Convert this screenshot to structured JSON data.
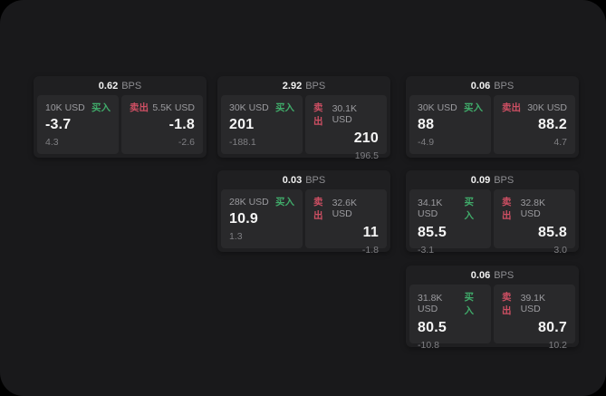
{
  "labels": {
    "bps": "BPS",
    "buy": "买入",
    "sell": "卖出"
  },
  "colors": {
    "buy_green": "#40ab6a",
    "sell_red": "#cd4f63",
    "page_bg": "#19191b",
    "card_bg": "#1f1f21",
    "tile_bg": "#29292b"
  },
  "cards": [
    {
      "bps": "0.62",
      "buy": {
        "amount": "10K USD",
        "value": "-3.7",
        "delta": "4.3"
      },
      "sell": {
        "amount": "5.5K USD",
        "value": "-1.8",
        "delta": "-2.6"
      }
    },
    {
      "bps": "2.92",
      "buy": {
        "amount": "30K USD",
        "value": "201",
        "delta": "-188.1"
      },
      "sell": {
        "amount": "30.1K USD",
        "value": "210",
        "delta": "196.5"
      }
    },
    {
      "bps": "0.06",
      "buy": {
        "amount": "30K USD",
        "value": "88",
        "delta": "-4.9"
      },
      "sell": {
        "amount": "30K USD",
        "value": "88.2",
        "delta": "4.7"
      }
    },
    {
      "bps": "0.03",
      "buy": {
        "amount": "28K USD",
        "value": "10.9",
        "delta": "1.3"
      },
      "sell": {
        "amount": "32.6K USD",
        "value": "11",
        "delta": "-1.8"
      }
    },
    {
      "bps": "0.09",
      "buy": {
        "amount": "34.1K USD",
        "value": "85.5",
        "delta": "-3.1"
      },
      "sell": {
        "amount": "32.8K USD",
        "value": "85.8",
        "delta": "3.0"
      }
    },
    {
      "bps": "0.06",
      "buy": {
        "amount": "31.8K USD",
        "value": "80.5",
        "delta": "-10.8"
      },
      "sell": {
        "amount": "39.1K USD",
        "value": "80.7",
        "delta": "10.2"
      }
    }
  ]
}
